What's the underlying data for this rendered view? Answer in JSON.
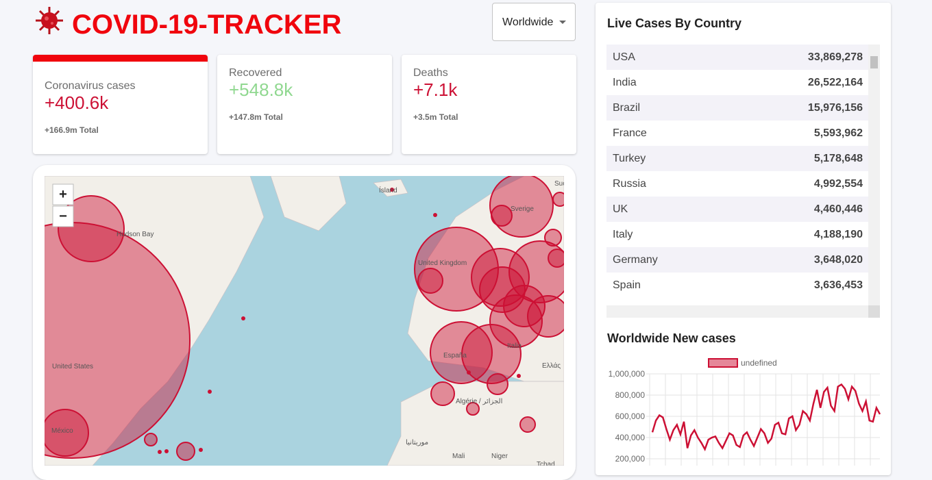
{
  "header": {
    "title": "COVID-19-TRACKER",
    "dropdown": "Worldwide"
  },
  "stats": [
    {
      "title": "Coronavirus cases",
      "value": "+400.6k",
      "total": "+166.9m Total"
    },
    {
      "title": "Recovered",
      "value": "+548.8k",
      "total": "+147.8m Total"
    },
    {
      "title": "Deaths",
      "value": "+7.1k",
      "total": "+3.5m Total"
    }
  ],
  "map": {
    "zoom_in": "+",
    "zoom_out": "−",
    "labels": [
      "Ísland",
      "Sverige",
      "United Kingdom",
      "España",
      "Italia",
      "United States",
      "México",
      "Hudson Bay",
      "Algérie / الجزائر",
      "موريتانيا",
      "Mali",
      "Niger",
      "Tchad",
      "Ελλάς",
      "Suo"
    ]
  },
  "table": {
    "title": "Live Cases By Country",
    "rows": [
      [
        "USA",
        "33,869,278"
      ],
      [
        "India",
        "26,522,164"
      ],
      [
        "Brazil",
        "15,976,156"
      ],
      [
        "France",
        "5,593,962"
      ],
      [
        "Turkey",
        "5,178,648"
      ],
      [
        "Russia",
        "4,992,554"
      ],
      [
        "UK",
        "4,460,446"
      ],
      [
        "Italy",
        "4,188,190"
      ],
      [
        "Germany",
        "3,648,020"
      ],
      [
        "Spain",
        "3,636,453"
      ]
    ]
  },
  "chart_data": {
    "type": "line",
    "title": "Worldwide New cases",
    "series": [
      {
        "name": "undefined",
        "color": "#cc1034",
        "values": [
          450000,
          560000,
          610000,
          590000,
          480000,
          380000,
          470000,
          520000,
          430000,
          550000,
          300000,
          420000,
          470000,
          400000,
          350000,
          290000,
          380000,
          400000,
          410000,
          350000,
          300000,
          370000,
          440000,
          420000,
          330000,
          310000,
          420000,
          450000,
          380000,
          320000,
          400000,
          480000,
          440000,
          350000,
          390000,
          520000,
          540000,
          440000,
          430000,
          580000,
          600000,
          470000,
          520000,
          650000,
          620000,
          560000,
          720000,
          850000,
          680000,
          830000,
          870000,
          700000,
          650000,
          880000,
          900000,
          860000,
          760000,
          880000,
          840000,
          720000,
          650000,
          740000,
          560000,
          550000,
          680000,
          620000
        ]
      }
    ],
    "ylim": [
      200000,
      1000000
    ],
    "yticks": [
      {
        "value": 200000,
        "label": "200,000"
      },
      {
        "value": 400000,
        "label": "400,000"
      },
      {
        "value": 600000,
        "label": "600,000"
      },
      {
        "value": 800000,
        "label": "800,000"
      },
      {
        "value": 1000000,
        "label": "1,000,000"
      }
    ],
    "grid": true
  }
}
